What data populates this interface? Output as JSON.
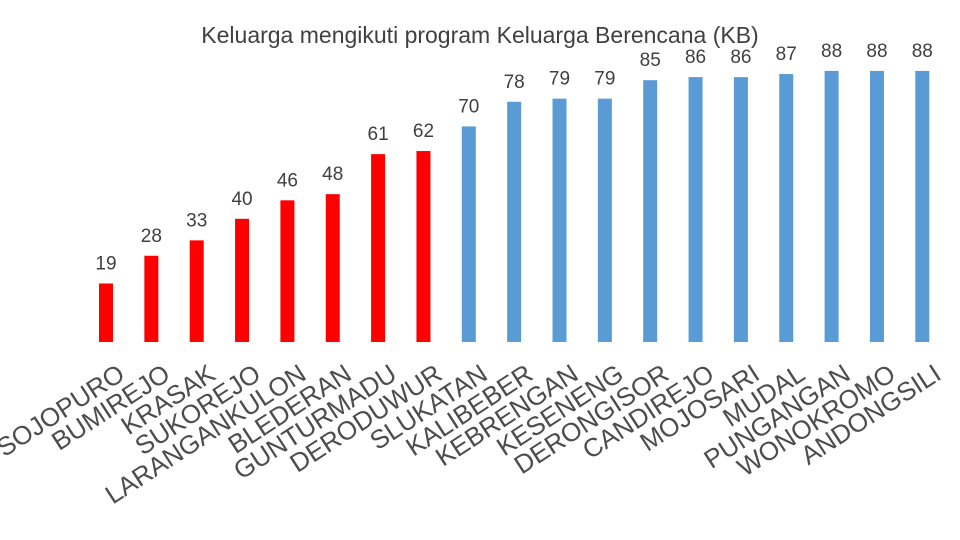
{
  "chart_data": {
    "type": "bar",
    "title": "Keluarga mengikuti program Keluarga Berencana (KB)",
    "categories": [
      "SOJOPURO",
      "BUMIREJO",
      "KRASAK",
      "SUKOREJO",
      "LARANGANKULON",
      "BLEDERAN",
      "GUNTURMADU",
      "DERODUWUR",
      "SLUKATAN",
      "KALIBEBER",
      "KEBRENGAN",
      "KESENENG",
      "DERONGISOR",
      "CANDIREJO",
      "MOJOSARI",
      "MUDAL",
      "PUNGANGAN",
      "WONOKROMO",
      "ANDONGSILI"
    ],
    "values": [
      19,
      28,
      33,
      40,
      46,
      48,
      61,
      62,
      70,
      78,
      79,
      79,
      85,
      86,
      86,
      87,
      88,
      88,
      88
    ],
    "series_colors": [
      "#FF0000",
      "#FF0000",
      "#FF0000",
      "#FF0000",
      "#FF0000",
      "#FF0000",
      "#FF0000",
      "#FF0000",
      "#5B9BD5",
      "#5B9BD5",
      "#5B9BD5",
      "#5B9BD5",
      "#5B9BD5",
      "#5B9BD5",
      "#5B9BD5",
      "#5B9BD5",
      "#5B9BD5",
      "#5B9BD5",
      "#5B9BD5"
    ],
    "ylim": [
      0,
      100
    ],
    "grid": false,
    "legend": "none",
    "xlabel": "",
    "ylabel": ""
  }
}
